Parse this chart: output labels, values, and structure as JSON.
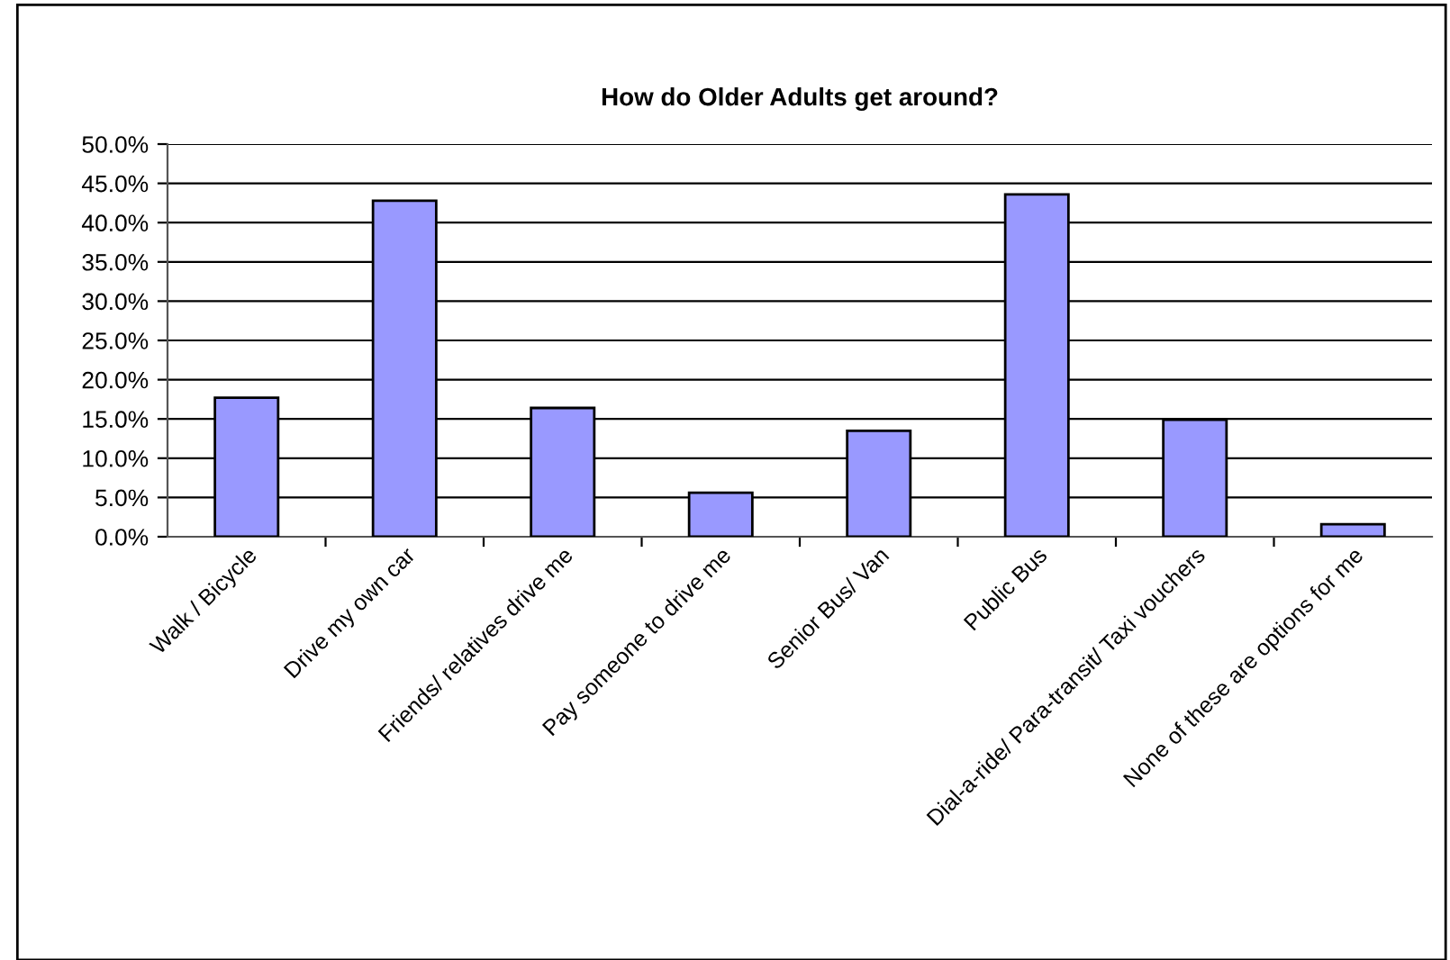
{
  "chart_data": {
    "type": "bar",
    "title": "How do Older Adults get around?",
    "categories": [
      "Walk / Bicycle",
      "Drive my own car",
      "Friends/ relatives drive me",
      "Pay someone to drive me",
      "Senior Bus/ Van",
      "Public Bus",
      "Dial-a-ride/ Para-transit/ Taxi vouchers",
      "None of these are options for me"
    ],
    "values": [
      17.7,
      42.8,
      16.4,
      5.6,
      13.5,
      43.6,
      14.9,
      1.6
    ],
    "color": "#9999ff",
    "ylim": [
      0,
      50
    ],
    "yticks": [
      {
        "value": 0,
        "label": "0.0%"
      },
      {
        "value": 5,
        "label": "5.0%"
      },
      {
        "value": 10,
        "label": "10.0%"
      },
      {
        "value": 15,
        "label": "15.0%"
      },
      {
        "value": 20,
        "label": "20.0%"
      },
      {
        "value": 25,
        "label": "25.0%"
      },
      {
        "value": 30,
        "label": "30.0%"
      },
      {
        "value": 35,
        "label": "35.0%"
      },
      {
        "value": 40,
        "label": "40.0%"
      },
      {
        "value": 45,
        "label": "45.0%"
      },
      {
        "value": 50,
        "label": "50.0%"
      }
    ],
    "grid": "y",
    "legend": false
  }
}
